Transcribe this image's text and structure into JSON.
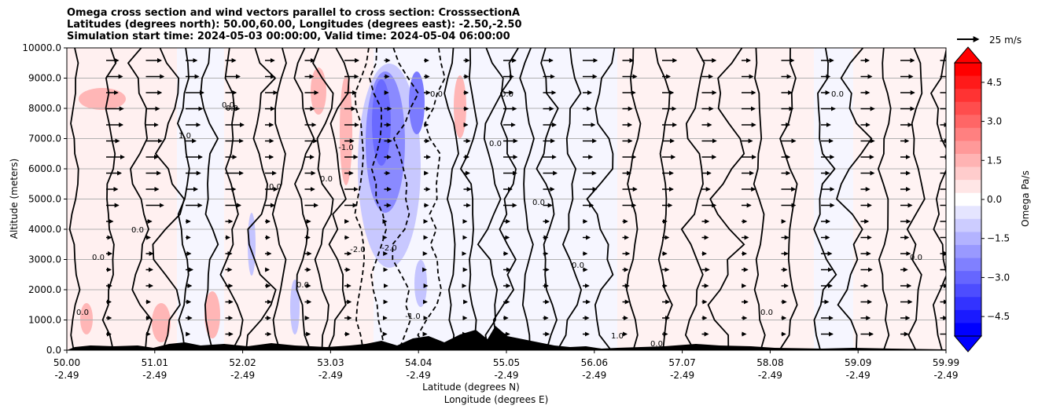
{
  "chart_data": {
    "type": "heatmap",
    "title_lines": [
      "Omega cross section and wind vectors parallel to cross section: CrosssectionA",
      "Latitudes (degrees north): 50.00,60.00, Longitudes (degrees east): -2.50,-2.50",
      "Simulation start time: 2024-05-03 00:00:00, Valid time: 2024-05-04 06:00:00"
    ],
    "ylabel": "Altitude (meters)",
    "xlabel_line1": "Latitude (degrees N)",
    "xlabel_line2": "Longitude (degrees E)",
    "y_ticks": [
      "0.0",
      "1000.0",
      "2000.0",
      "3000.0",
      "4000.0",
      "5000.0",
      "6000.0",
      "7000.0",
      "8000.0",
      "9000.0",
      "10000.0"
    ],
    "ylim": [
      0,
      10000
    ],
    "x_ticks": [
      {
        "lat": "50.00",
        "lon": "-2.49"
      },
      {
        "lat": "51.01",
        "lon": "-2.49"
      },
      {
        "lat": "52.02",
        "lon": "-2.49"
      },
      {
        "lat": "53.03",
        "lon": "-2.49"
      },
      {
        "lat": "54.04",
        "lon": "-2.49"
      },
      {
        "lat": "55.05",
        "lon": "-2.49"
      },
      {
        "lat": "56.06",
        "lon": "-2.49"
      },
      {
        "lat": "57.07",
        "lon": "-2.49"
      },
      {
        "lat": "58.08",
        "lon": "-2.49"
      },
      {
        "lat": "59.09",
        "lon": "-2.49"
      },
      {
        "lat": "59.99",
        "lon": "-2.49"
      }
    ],
    "xlim": [
      50.0,
      59.99
    ],
    "colorbar": {
      "label": "Omega Pa/s",
      "ticks": [
        "4.5",
        "3.0",
        "1.5",
        "0.0",
        "−1.5",
        "−3.0",
        "−4.5"
      ],
      "range": [
        -5.25,
        5.25
      ],
      "extend": "both"
    },
    "quiver_key": "25 m/s",
    "contour_labels": [
      "0.0",
      "1.0",
      "-1.0",
      "-2.0"
    ],
    "grid": "horizontal",
    "colors": {
      "positive": "#ff0000",
      "negative": "#0000ff",
      "terrain": "#000000"
    }
  }
}
